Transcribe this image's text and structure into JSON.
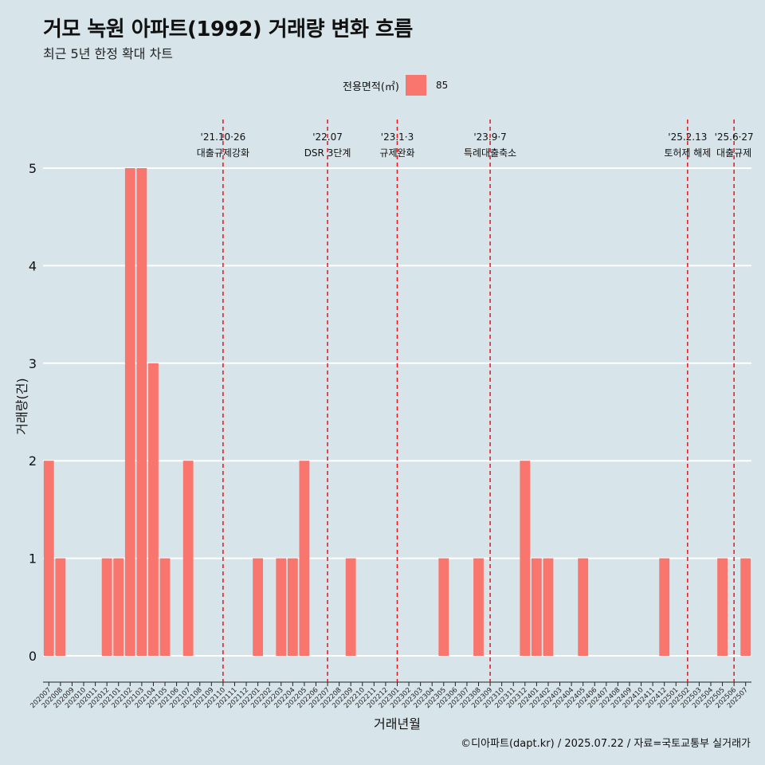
{
  "chart_data": {
    "type": "bar",
    "title": "거모 녹원 아파트(1992) 거래량 변화 흐름",
    "subtitle": "최근 5년 한정 확대 차트",
    "xlabel": "거래년월",
    "ylabel": "거래량(건)",
    "ylim": [
      0,
      5
    ],
    "yticks": [
      0,
      1,
      2,
      3,
      4,
      5
    ],
    "legend_title": "전용면적(㎡)",
    "legend_position": "top",
    "series": [
      {
        "name": "85",
        "color": "#f8766d",
        "values": [
          2,
          1,
          0,
          0,
          0,
          1,
          1,
          5,
          5,
          3,
          1,
          0,
          2,
          0,
          0,
          0,
          0,
          0,
          1,
          0,
          1,
          1,
          2,
          0,
          0,
          0,
          1,
          0,
          0,
          0,
          0,
          0,
          0,
          0,
          1,
          0,
          0,
          1,
          0,
          0,
          0,
          2,
          1,
          1,
          0,
          0,
          1,
          0,
          0,
          0,
          0,
          0,
          0,
          1,
          0,
          0,
          0,
          0,
          1,
          0,
          1
        ]
      }
    ],
    "categories": [
      "202007",
      "202008",
      "202009",
      "202010",
      "202011",
      "202012",
      "202101",
      "202102",
      "202103",
      "202104",
      "202105",
      "202106",
      "202107",
      "202108",
      "202109",
      "202110",
      "202111",
      "202112",
      "202201",
      "202202",
      "202203",
      "202204",
      "202205",
      "202206",
      "202207",
      "202208",
      "202209",
      "202210",
      "202211",
      "202212",
      "202301",
      "202302",
      "202303",
      "202304",
      "202305",
      "202306",
      "202307",
      "202308",
      "202309",
      "202310",
      "202311",
      "202312",
      "202401",
      "202402",
      "202403",
      "202404",
      "202405",
      "202406",
      "202407",
      "202408",
      "202409",
      "202410",
      "202411",
      "202412",
      "202501",
      "202502",
      "202503",
      "202504",
      "202505",
      "202506",
      "202507"
    ],
    "annotations": [
      {
        "x": 15.5,
        "line1": "'21.10·26",
        "line2": "대출규제강화"
      },
      {
        "x": 24.5,
        "line1": "'22.07",
        "line2": "DSR 3단계"
      },
      {
        "x": 30.5,
        "line1": "'23.1·3",
        "line2": "규제완화"
      },
      {
        "x": 38.5,
        "line1": "'23.9·7",
        "line2": "특례대출축소"
      },
      {
        "x": 55.5,
        "line1": "'25.2.13",
        "line2": "토허제 해제"
      },
      {
        "x": 59.5,
        "line1": "'25.6·27",
        "line2": "대출규제"
      }
    ],
    "grid": "horizontal"
  },
  "footer": "©디아파트(dapt.kr) / 2025.07.22 / 자료=국토교통부 실거래가",
  "colors": {
    "background": "#d7e4ea",
    "bar": "#f8766d",
    "annotation_line": "#e8131b",
    "gridline": "#ffffff"
  }
}
